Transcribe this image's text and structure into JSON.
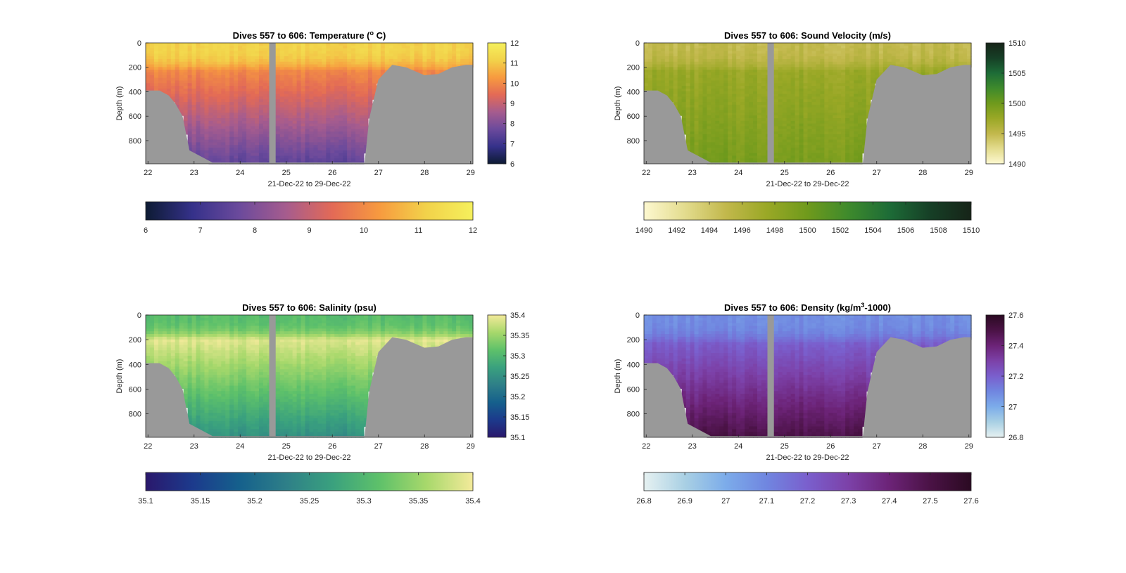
{
  "figure": {
    "background": "#ffffff",
    "land_color": "#999999"
  },
  "panels": [
    {
      "key": "temperature",
      "title_text": "Dives 557 to 606: Temperature (",
      "title_sup": "o",
      "title_tail": " C)"
    },
    {
      "key": "sound_velocity",
      "title_text": "Dives 557 to 606: Sound Velocity (m/s)",
      "title_sup": "",
      "title_tail": ""
    },
    {
      "key": "salinity",
      "title_text": "Dives 557 to 606: Salinity (psu)",
      "title_sup": "",
      "title_tail": ""
    },
    {
      "key": "density",
      "title_text": "Dives 557 to 606: Density (kg/m",
      "title_sup": "3",
      "title_tail": "-1000)"
    }
  ],
  "chart_data": [
    {
      "type": "heatmap",
      "title": "Dives 557 to 606: Temperature (o C)",
      "xlabel": "21-Dec-22 to 29-Dec-22",
      "ylabel": "Depth (m)",
      "xlim": [
        21.95,
        29.05
      ],
      "ylim": [
        0,
        990
      ],
      "y_reversed": true,
      "xticks": [
        "22",
        "23",
        "24",
        "25",
        "26",
        "27",
        "28",
        "29"
      ],
      "yticks": [
        "0",
        "200",
        "400",
        "600",
        "800"
      ],
      "colormap": "thermal",
      "colors": [
        "#0d1b33",
        "#35318a",
        "#6b4a9c",
        "#a65c8e",
        "#e36a56",
        "#f79a3f",
        "#f2d24a",
        "#f5f05c"
      ],
      "clim": [
        6,
        12
      ],
      "side_colorbar_ticks": [
        "6",
        "7",
        "8",
        "9",
        "10",
        "11",
        "12"
      ],
      "bottom_colorbar_ticks": [
        "6",
        "7",
        "8",
        "9",
        "10",
        "11",
        "12"
      ],
      "value_profile": {
        "surface": 11.2,
        "mixed_layer_depth_m": 230,
        "below_mixed": 10.0,
        "bottom": 7.5
      },
      "data_gap_x": [
        24.63,
        24.77
      ],
      "bathymetry": {
        "x": [
          22.0,
          22.25,
          22.45,
          22.6,
          22.75,
          22.9,
          23.4,
          24.63,
          24.77,
          26.7,
          26.8,
          27.0,
          27.3,
          27.6,
          28.0,
          28.3,
          28.6,
          28.9,
          29.0
        ],
        "depth": [
          390,
          390,
          430,
          500,
          600,
          880,
          980,
          980,
          980,
          980,
          620,
          300,
          180,
          200,
          265,
          255,
          200,
          180,
          180
        ]
      }
    },
    {
      "type": "heatmap",
      "title": "Dives 557 to 606: Sound Velocity (m/s)",
      "xlabel": "21-Dec-22 to 29-Dec-22",
      "ylabel": "Depth (m)",
      "xlim": [
        21.95,
        29.05
      ],
      "ylim": [
        0,
        990
      ],
      "y_reversed": true,
      "xticks": [
        "22",
        "23",
        "24",
        "25",
        "26",
        "27",
        "28",
        "29"
      ],
      "yticks": [
        "0",
        "200",
        "400",
        "600",
        "800"
      ],
      "colormap": "speed",
      "colors": [
        "#fdf8d0",
        "#e3dc8e",
        "#c2b84c",
        "#9aa826",
        "#6f9a1c",
        "#3e8a2c",
        "#1d6c37",
        "#163f26",
        "#162418"
      ],
      "clim": [
        1490,
        1510
      ],
      "side_colorbar_ticks": [
        "1490",
        "1495",
        "1500",
        "1505",
        "1510"
      ],
      "bottom_colorbar_ticks": [
        "1490",
        "1492",
        "1494",
        "1496",
        "1498",
        "1500",
        "1502",
        "1504",
        "1506",
        "1508",
        "1510"
      ],
      "value_profile": {
        "surface": 1495.0,
        "mixed_layer_depth_m": 230,
        "below_mixed": 1497.5,
        "bottom": 1499.5
      },
      "data_gap_x": [
        24.63,
        24.77
      ],
      "bathymetry": {
        "x": [
          22.0,
          22.25,
          22.45,
          22.6,
          22.75,
          22.9,
          23.4,
          24.63,
          24.77,
          26.7,
          26.8,
          27.0,
          27.3,
          27.6,
          28.0,
          28.3,
          28.6,
          28.9,
          29.0
        ],
        "depth": [
          390,
          390,
          430,
          500,
          600,
          880,
          980,
          980,
          980,
          980,
          620,
          300,
          180,
          200,
          265,
          255,
          200,
          180,
          180
        ]
      }
    },
    {
      "type": "heatmap",
      "title": "Dives 557 to 606: Salinity (psu)",
      "xlabel": "21-Dec-22 to 29-Dec-22",
      "ylabel": "Depth (m)",
      "xlim": [
        21.95,
        29.05
      ],
      "ylim": [
        0,
        990
      ],
      "y_reversed": true,
      "xticks": [
        "22",
        "23",
        "24",
        "25",
        "26",
        "27",
        "28",
        "29"
      ],
      "yticks": [
        "0",
        "200",
        "400",
        "600",
        "800"
      ],
      "colormap": "haline",
      "colors": [
        "#2a186c",
        "#1c3a8c",
        "#15608c",
        "#2e7f88",
        "#3aa17e",
        "#5ec16a",
        "#a7d86b",
        "#f3ea9a"
      ],
      "clim": [
        35.1,
        35.4
      ],
      "side_colorbar_ticks": [
        "35.1",
        "35.15",
        "35.2",
        "35.25",
        "35.3",
        "35.35",
        "35.4"
      ],
      "bottom_colorbar_ticks": [
        "35.1",
        "35.15",
        "35.2",
        "35.25",
        "35.3",
        "35.35",
        "35.4"
      ],
      "value_profile": {
        "surface": 35.31,
        "mixed_layer_depth_m": 200,
        "below_mixed": 35.39,
        "bottom": 35.25
      },
      "data_gap_x": [
        24.63,
        24.77
      ],
      "bathymetry": {
        "x": [
          22.0,
          22.25,
          22.45,
          22.6,
          22.75,
          22.9,
          23.4,
          24.63,
          24.77,
          26.7,
          26.8,
          27.0,
          27.3,
          27.6,
          28.0,
          28.3,
          28.6,
          28.9,
          29.0
        ],
        "depth": [
          390,
          390,
          430,
          500,
          600,
          880,
          980,
          980,
          980,
          980,
          620,
          300,
          180,
          200,
          265,
          255,
          200,
          180,
          180
        ]
      }
    },
    {
      "type": "heatmap",
      "title": "Dives 557 to 606: Density (kg/m3-1000)",
      "xlabel": "21-Dec-22 to 29-Dec-22",
      "ylabel": "Depth (m)",
      "xlim": [
        21.95,
        29.05
      ],
      "ylim": [
        0,
        990
      ],
      "y_reversed": true,
      "xticks": [
        "22",
        "23",
        "24",
        "25",
        "26",
        "27",
        "28",
        "29"
      ],
      "yticks": [
        "0",
        "200",
        "400",
        "600",
        "800"
      ],
      "colormap": "dense",
      "colors": [
        "#e6f1f1",
        "#a9d0e4",
        "#7cacea",
        "#7086e0",
        "#7a5fcd",
        "#7c41a8",
        "#6c2377",
        "#4a1245",
        "#2b0a22"
      ],
      "clim": [
        26.8,
        27.6
      ],
      "side_colorbar_ticks": [
        "26.8",
        "27",
        "27.2",
        "27.4",
        "27.6"
      ],
      "bottom_colorbar_ticks": [
        "26.8",
        "26.9",
        "27",
        "27.1",
        "27.2",
        "27.3",
        "27.4",
        "27.5",
        "27.6"
      ],
      "value_profile": {
        "surface": 27.08,
        "mixed_layer_depth_m": 230,
        "below_mixed": 27.2,
        "bottom": 27.5
      },
      "data_gap_x": [
        24.63,
        24.77
      ],
      "bathymetry": {
        "x": [
          22.0,
          22.25,
          22.45,
          22.6,
          22.75,
          22.9,
          23.4,
          24.63,
          24.77,
          26.7,
          26.8,
          27.0,
          27.3,
          27.6,
          28.0,
          28.3,
          28.6,
          28.9,
          29.0
        ],
        "depth": [
          390,
          390,
          430,
          500,
          600,
          880,
          980,
          980,
          980,
          980,
          620,
          300,
          180,
          200,
          265,
          255,
          200,
          180,
          180
        ]
      }
    }
  ]
}
